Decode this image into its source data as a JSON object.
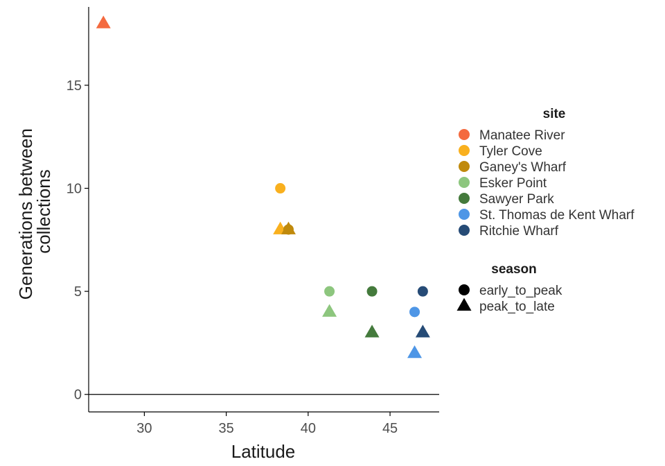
{
  "chart_data": {
    "type": "scatter",
    "title": "",
    "xlabel": "Latitude",
    "ylabel_lines": [
      "Generations between",
      "collections"
    ],
    "xlim": [
      26.6,
      48.0
    ],
    "ylim": [
      -0.85,
      18.8
    ],
    "x_ticks": [
      30,
      35,
      40,
      45
    ],
    "y_ticks": [
      0,
      5,
      10,
      15
    ],
    "hline": 0,
    "legend_site": {
      "title": "site",
      "entries": [
        {
          "name": "Manatee River",
          "color": "#F46A3F"
        },
        {
          "name": "Tyler Cove",
          "color": "#F9B01E"
        },
        {
          "name": "Ganey's Wharf",
          "color": "#C08A0C"
        },
        {
          "name": "Esker Point",
          "color": "#8DC67E"
        },
        {
          "name": "Sawyer Park",
          "color": "#447A3C"
        },
        {
          "name": "St. Thomas de Kent Wharf",
          "color": "#4E96E6"
        },
        {
          "name": "Ritchie Wharf",
          "color": "#264B76"
        }
      ]
    },
    "legend_season": {
      "title": "season",
      "entries": [
        {
          "name": "early_to_peak",
          "shape": "circle"
        },
        {
          "name": "peak_to_late",
          "shape": "triangle"
        }
      ]
    },
    "points": [
      {
        "site": "Manatee River",
        "season": "peak_to_late",
        "x": 27.5,
        "y": 18
      },
      {
        "site": "Tyler Cove",
        "season": "early_to_peak",
        "x": 38.3,
        "y": 10
      },
      {
        "site": "Tyler Cove",
        "season": "peak_to_late",
        "x": 38.3,
        "y": 8
      },
      {
        "site": "Ganey's Wharf",
        "season": "early_to_peak",
        "x": 38.8,
        "y": 8
      },
      {
        "site": "Ganey's Wharf",
        "season": "peak_to_late",
        "x": 38.8,
        "y": 8
      },
      {
        "site": "Esker Point",
        "season": "early_to_peak",
        "x": 41.3,
        "y": 5
      },
      {
        "site": "Esker Point",
        "season": "peak_to_late",
        "x": 41.3,
        "y": 4
      },
      {
        "site": "Sawyer Park",
        "season": "early_to_peak",
        "x": 43.9,
        "y": 5
      },
      {
        "site": "Sawyer Park",
        "season": "peak_to_late",
        "x": 43.9,
        "y": 3
      },
      {
        "site": "St. Thomas de Kent Wharf",
        "season": "early_to_peak",
        "x": 46.5,
        "y": 4
      },
      {
        "site": "St. Thomas de Kent Wharf",
        "season": "peak_to_late",
        "x": 46.5,
        "y": 2
      },
      {
        "site": "Ritchie Wharf",
        "season": "early_to_peak",
        "x": 47.0,
        "y": 5
      },
      {
        "site": "Ritchie Wharf",
        "season": "peak_to_late",
        "x": 47.0,
        "y": 3
      }
    ]
  }
}
